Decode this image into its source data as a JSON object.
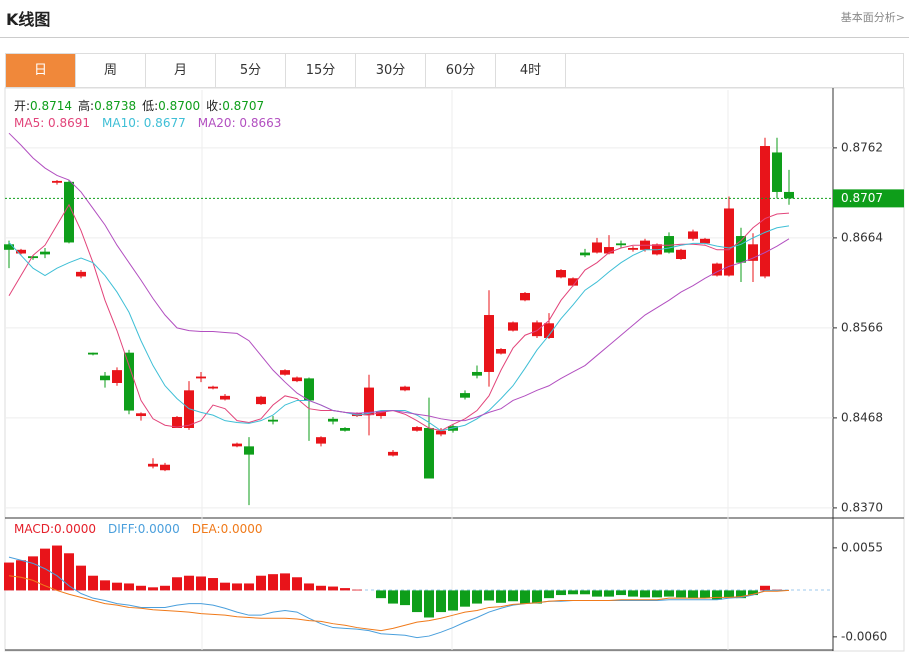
{
  "header": {
    "title": "K线图",
    "link": "基本面分析>"
  },
  "tabs": [
    "日",
    "周",
    "月",
    "5分",
    "15分",
    "30分",
    "60分",
    "4时"
  ],
  "active_tab": 0,
  "chart_data": [
    {
      "type": "candlestick",
      "ohlc_legend": [
        {
          "label": "开:",
          "value": "0.8714"
        },
        {
          "label": "高:",
          "value": "0.8738"
        },
        {
          "label": "低:",
          "value": "0.8700"
        },
        {
          "label": "收:",
          "value": "0.8707"
        }
      ],
      "up_color": "#e8141a",
      "down_color": "#0e9e1a",
      "open": [
        0.8657,
        0.8647,
        0.8644,
        0.8649,
        0.8724,
        0.8725,
        0.8622,
        0.8539,
        0.8514,
        0.8506,
        0.8539,
        0.847,
        0.8415,
        0.8411,
        0.8457,
        0.8457,
        0.8511,
        0.85,
        0.8488,
        0.8437,
        0.8437,
        0.8483,
        0.8466,
        0.8515,
        0.8508,
        0.8511,
        0.844,
        0.8467,
        0.8457,
        0.847,
        0.8471,
        0.847,
        0.8427,
        0.8498,
        0.8454,
        0.8457,
        0.845,
        0.8459,
        0.8495,
        0.8518,
        0.8518,
        0.8538,
        0.8563,
        0.8596,
        0.8557,
        0.8555,
        0.8621,
        0.8612,
        0.8648,
        0.8648,
        0.8647,
        0.8658,
        0.8651,
        0.8651,
        0.8646,
        0.8666,
        0.8641,
        0.8663,
        0.8658,
        0.8623,
        0.8623,
        0.8666,
        0.8639,
        0.8622,
        0.8757,
        0.8714
      ],
      "high": [
        0.8661,
        0.8652,
        0.8645,
        0.8653,
        0.8727,
        0.8727,
        0.8629,
        0.8539,
        0.8518,
        0.8523,
        0.8542,
        0.8474,
        0.8424,
        0.8419,
        0.847,
        0.8508,
        0.8518,
        0.8503,
        0.8494,
        0.8441,
        0.8447,
        0.8492,
        0.847,
        0.8521,
        0.8513,
        0.8512,
        0.8448,
        0.8469,
        0.8458,
        0.8474,
        0.8515,
        0.8476,
        0.8433,
        0.8503,
        0.8459,
        0.849,
        0.8457,
        0.8461,
        0.8498,
        0.8525,
        0.8607,
        0.8544,
        0.8573,
        0.8605,
        0.8574,
        0.8582,
        0.863,
        0.8621,
        0.8652,
        0.8664,
        0.8667,
        0.8661,
        0.8655,
        0.8663,
        0.8658,
        0.867,
        0.8652,
        0.8673,
        0.8664,
        0.8637,
        0.8709,
        0.8675,
        0.8669,
        0.8773,
        0.8773,
        0.8738
      ],
      "low": [
        0.8631,
        0.8646,
        0.864,
        0.8642,
        0.8722,
        0.8658,
        0.862,
        0.8536,
        0.8501,
        0.8503,
        0.8472,
        0.8465,
        0.8413,
        0.841,
        0.8457,
        0.8455,
        0.8507,
        0.8499,
        0.8487,
        0.8436,
        0.8373,
        0.8482,
        0.8461,
        0.8514,
        0.8507,
        0.8443,
        0.8437,
        0.8461,
        0.8453,
        0.8469,
        0.8449,
        0.8467,
        0.8426,
        0.8497,
        0.8453,
        0.8402,
        0.8448,
        0.8452,
        0.8488,
        0.8511,
        0.8502,
        0.8537,
        0.8562,
        0.8595,
        0.8555,
        0.8554,
        0.862,
        0.8611,
        0.8643,
        0.8647,
        0.8646,
        0.8653,
        0.8649,
        0.8649,
        0.8645,
        0.8647,
        0.864,
        0.8661,
        0.8657,
        0.8622,
        0.8622,
        0.8616,
        0.8616,
        0.862,
        0.8707,
        0.87
      ],
      "close": [
        0.8651,
        0.8651,
        0.8642,
        0.8646,
        0.8726,
        0.8659,
        0.8627,
        0.8537,
        0.8509,
        0.852,
        0.8476,
        0.8473,
        0.8418,
        0.8417,
        0.8469,
        0.8498,
        0.8513,
        0.8502,
        0.8492,
        0.844,
        0.8428,
        0.8491,
        0.8464,
        0.852,
        0.8512,
        0.8487,
        0.8447,
        0.8464,
        0.8454,
        0.8473,
        0.8501,
        0.8475,
        0.8431,
        0.8502,
        0.8458,
        0.8402,
        0.8454,
        0.8454,
        0.849,
        0.8514,
        0.858,
        0.8543,
        0.8572,
        0.8604,
        0.8572,
        0.8571,
        0.8629,
        0.862,
        0.8645,
        0.8659,
        0.8654,
        0.8656,
        0.8653,
        0.8661,
        0.8657,
        0.8648,
        0.8651,
        0.8671,
        0.8663,
        0.8636,
        0.8696,
        0.8637,
        0.8657,
        0.8764,
        0.8714,
        0.8707
      ],
      "series": [
        {
          "name": "MA5: 0.8691",
          "color": "#e2447a",
          "values": [
            0.8601,
            0.8623,
            0.8645,
            0.8656,
            0.8678,
            0.87,
            0.8672,
            0.8637,
            0.8596,
            0.8563,
            0.8525,
            0.8487,
            0.8467,
            0.846,
            0.8458,
            0.846,
            0.8465,
            0.8482,
            0.8478,
            0.8465,
            0.8463,
            0.8467,
            0.8482,
            0.8492,
            0.8489,
            0.8478,
            0.8476,
            0.8476,
            0.8474,
            0.8472,
            0.8471,
            0.8474,
            0.8476,
            0.8472,
            0.8465,
            0.8457,
            0.8454,
            0.8461,
            0.8467,
            0.8476,
            0.8492,
            0.852,
            0.8544,
            0.8558,
            0.8563,
            0.8574,
            0.8596,
            0.8612,
            0.8629,
            0.8637,
            0.8648,
            0.8653,
            0.8656,
            0.8656,
            0.8656,
            0.8656,
            0.8657,
            0.8657,
            0.8656,
            0.8651,
            0.8651,
            0.8661,
            0.8675,
            0.8685,
            0.869,
            0.8691
          ]
        },
        {
          "name": "MA10: 0.8677",
          "color": "#3fbfd6",
          "values": [
            0.8659,
            0.8645,
            0.8631,
            0.8623,
            0.8631,
            0.8637,
            0.8642,
            0.8637,
            0.8623,
            0.8605,
            0.8583,
            0.8552,
            0.8525,
            0.8503,
            0.8489,
            0.8478,
            0.8474,
            0.8471,
            0.8465,
            0.8463,
            0.8462,
            0.8465,
            0.8471,
            0.8482,
            0.8487,
            0.8487,
            0.8482,
            0.8476,
            0.8474,
            0.8471,
            0.8473,
            0.8476,
            0.8476,
            0.8476,
            0.8471,
            0.8463,
            0.8454,
            0.8457,
            0.846,
            0.8467,
            0.8476,
            0.8489,
            0.8503,
            0.8522,
            0.8542,
            0.8558,
            0.8576,
            0.8591,
            0.8607,
            0.8616,
            0.8627,
            0.8637,
            0.8645,
            0.8651,
            0.8651,
            0.8653,
            0.8656,
            0.8658,
            0.8658,
            0.8655,
            0.8653,
            0.8657,
            0.8664,
            0.867,
            0.8675,
            0.8677
          ]
        },
        {
          "name": "MA20: 0.8663",
          "color": "#b24fc0",
          "values": [
            0.8778,
            0.8765,
            0.8751,
            0.874,
            0.8732,
            0.8727,
            0.8714,
            0.8696,
            0.8678,
            0.8656,
            0.8637,
            0.8618,
            0.8598,
            0.858,
            0.8566,
            0.8563,
            0.8562,
            0.8562,
            0.8561,
            0.856,
            0.8552,
            0.8536,
            0.852,
            0.8507,
            0.8495,
            0.8487,
            0.8482,
            0.8476,
            0.8474,
            0.8473,
            0.8474,
            0.8475,
            0.8476,
            0.8474,
            0.8472,
            0.847,
            0.8467,
            0.8465,
            0.8465,
            0.8469,
            0.8474,
            0.8478,
            0.8487,
            0.8492,
            0.8498,
            0.8503,
            0.8511,
            0.8518,
            0.8525,
            0.8536,
            0.8547,
            0.8558,
            0.8569,
            0.858,
            0.8588,
            0.8596,
            0.8605,
            0.8612,
            0.862,
            0.8627,
            0.8633,
            0.8637,
            0.8642,
            0.8648,
            0.8655,
            0.8663
          ]
        }
      ],
      "last_price": {
        "value": 0.8707,
        "label": "0.8707"
      },
      "last_price_color": "#0e9e1a",
      "ylim": [
        0.8359,
        0.8825
      ],
      "yticks": [
        0.8762,
        0.8664,
        0.8566,
        0.8468,
        0.837
      ],
      "ytick_labels": [
        "0.8762",
        "0.8664",
        "0.8566",
        "0.8468",
        "0.8370"
      ],
      "grid": true
    },
    {
      "type": "macd",
      "histogram": {
        "name": "MACD:0.0000",
        "color": "#e5202b",
        "up_color": "#e8141a",
        "down_color": "#0e9e1a",
        "values": [
          0.0036,
          0.0039,
          0.0044,
          0.0054,
          0.0058,
          0.0048,
          0.0032,
          0.0019,
          0.0013,
          0.001,
          0.0009,
          0.0006,
          0.0004,
          0.0006,
          0.0017,
          0.0019,
          0.0018,
          0.0016,
          0.001,
          0.0009,
          0.0009,
          0.0019,
          0.0021,
          0.0022,
          0.0017,
          0.0009,
          0.0006,
          0.0005,
          0.0003,
          0.0001,
          0,
          -0.001,
          -0.0017,
          -0.0019,
          -0.0028,
          -0.0035,
          -0.0028,
          -0.0026,
          -0.0021,
          -0.0017,
          -0.0013,
          -0.0016,
          -0.0014,
          -0.0017,
          -0.0017,
          -0.001,
          -0.0006,
          -0.0005,
          -0.0005,
          -0.0008,
          -0.0008,
          -0.0006,
          -0.0008,
          -0.0009,
          -0.0009,
          -0.0008,
          -0.0009,
          -0.001,
          -0.001,
          -0.0012,
          -0.0009,
          -0.001,
          -0.0006,
          0.0006,
          0.0001,
          0
        ]
      },
      "series": [
        {
          "name": "DIFF:0.0000",
          "color": "#4a9fdc",
          "values": [
            0.0043,
            0.0039,
            0.0035,
            0.0028,
            0.0019,
            0.0006,
            -0.0004,
            -0.001,
            -0.0013,
            -0.0017,
            -0.0019,
            -0.0022,
            -0.0022,
            -0.0022,
            -0.0019,
            -0.0017,
            -0.0017,
            -0.0019,
            -0.0023,
            -0.0028,
            -0.0032,
            -0.0032,
            -0.0028,
            -0.0026,
            -0.0028,
            -0.0036,
            -0.0043,
            -0.0048,
            -0.0049,
            -0.005,
            -0.0052,
            -0.0056,
            -0.0057,
            -0.0058,
            -0.0061,
            -0.0059,
            -0.0054,
            -0.0048,
            -0.0041,
            -0.0035,
            -0.0028,
            -0.0023,
            -0.0019,
            -0.0017,
            -0.0016,
            -0.0014,
            -0.0014,
            -0.0013,
            -0.0013,
            -0.0013,
            -0.0013,
            -0.0013,
            -0.0013,
            -0.0013,
            -0.0013,
            -0.0012,
            -0.0012,
            -0.0012,
            -0.0012,
            -0.0012,
            -0.001,
            -0.0009,
            -0.0006,
            0,
            0,
            0
          ]
        },
        {
          "name": "DEA:0.0000",
          "color": "#f07a1a",
          "values": [
            0.0019,
            0.0017,
            0.0013,
            0.0006,
            0,
            -0.0005,
            -0.0009,
            -0.0013,
            -0.0017,
            -0.0019,
            -0.0022,
            -0.0023,
            -0.0025,
            -0.0026,
            -0.0027,
            -0.0028,
            -0.003,
            -0.0031,
            -0.0032,
            -0.0034,
            -0.0035,
            -0.0036,
            -0.0036,
            -0.0036,
            -0.0037,
            -0.0039,
            -0.004,
            -0.0043,
            -0.0045,
            -0.0048,
            -0.005,
            -0.0052,
            -0.0049,
            -0.0045,
            -0.0041,
            -0.0039,
            -0.0036,
            -0.0032,
            -0.0028,
            -0.0026,
            -0.0022,
            -0.0021,
            -0.0018,
            -0.0017,
            -0.0016,
            -0.0014,
            -0.0013,
            -0.0013,
            -0.0013,
            -0.0013,
            -0.0013,
            -0.0012,
            -0.0012,
            -0.0012,
            -0.0012,
            -0.001,
            -0.001,
            -0.001,
            -0.001,
            -0.0009,
            -0.0009,
            -0.0008,
            -0.0005,
            -0.0001,
            -0.0001,
            0
          ]
        }
      ],
      "ylim": [
        -0.0077,
        0.0091
      ],
      "yticks": [
        0.0055,
        {
          "value": -0.006,
          "label": "-0.0060"
        }
      ],
      "grid": false
    }
  ]
}
